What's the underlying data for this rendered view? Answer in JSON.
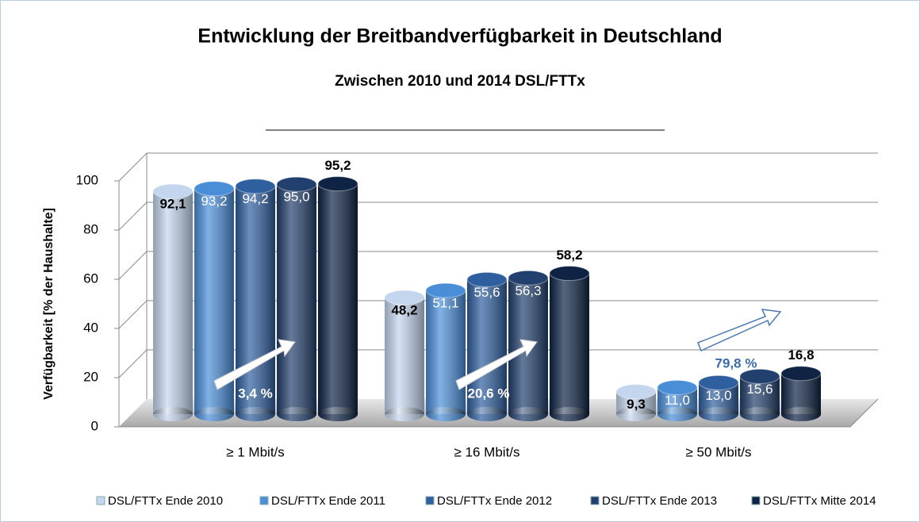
{
  "chart_data": {
    "type": "bar",
    "title": "Entwicklung der Breitbandverfügbarkeit in Deutschland",
    "subtitle": "Zwischen 2010 und 2014 DSL/FTTx",
    "y_label": "Verfügbarkeit [% der Haushalte]",
    "categories": [
      "≥ 1 Mbit/s",
      "≥ 16 Mbit/s",
      "≥ 50 Mbit/s"
    ],
    "series": [
      {
        "name": "DSL/FTTx Ende 2010",
        "color": "#c4d6ee",
        "values": [
          92.1,
          48.2,
          9.3
        ],
        "value_labels": [
          "92,1",
          "48,2",
          "9,3"
        ]
      },
      {
        "name": "DSL/FTTx Ende 2011",
        "color": "#4a8ed8",
        "values": [
          93.2,
          51.1,
          11.0
        ],
        "value_labels": [
          "93,2",
          "51,1",
          "11,0"
        ]
      },
      {
        "name": "DSL/FTTx Ende 2012",
        "color": "#2f5f9f",
        "values": [
          94.2,
          55.6,
          13.0
        ],
        "value_labels": [
          "94,2",
          "55,6",
          "13,0"
        ]
      },
      {
        "name": "DSL/FTTx Ende 2013",
        "color": "#22406d",
        "values": [
          95.0,
          56.3,
          15.6
        ],
        "value_labels": [
          "95,0",
          "56,3",
          "15,6"
        ]
      },
      {
        "name": "DSL/FTTx Mitte 2014",
        "color": "#0f2445",
        "values": [
          95.2,
          58.2,
          16.8
        ],
        "value_labels": [
          "95,2",
          "58,2",
          "16,8"
        ]
      }
    ],
    "annotations": [
      "3,4 %",
      "20,6 %",
      "79,8 %"
    ],
    "ylim": [
      0,
      100
    ],
    "yticks": [
      0,
      20,
      40,
      60,
      80,
      100
    ],
    "grid": true
  }
}
